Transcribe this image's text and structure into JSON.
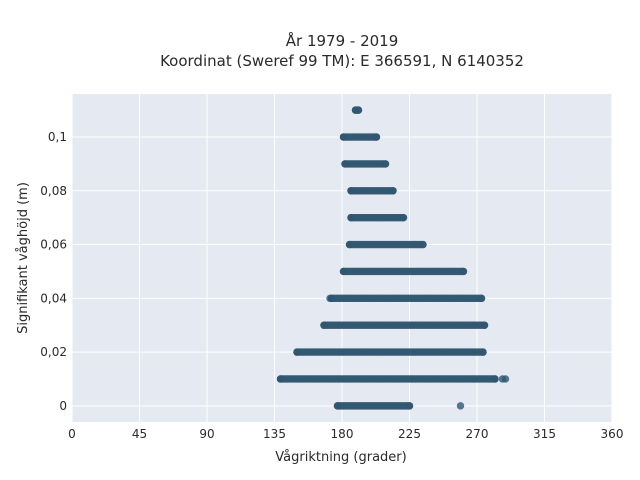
{
  "chart_data": {
    "type": "scatter",
    "title": "År 1979 - 2019",
    "subtitle": "Koordinat (Sweref 99 TM): E 366591, N 6140352",
    "xlabel": "Vågriktning (grader)",
    "ylabel": "Signifikant våghöjd (m)",
    "xlim": [
      0,
      360
    ],
    "ylim": [
      -0.006,
      0.116
    ],
    "x_ticks": [
      0,
      45,
      90,
      135,
      180,
      225,
      270,
      315,
      360
    ],
    "y_ticks": [
      0,
      0.02,
      0.04,
      0.06,
      0.08,
      0.1
    ],
    "y_tick_labels": [
      "0",
      "0,02",
      "0,04",
      "0,06",
      "0,08",
      "0,1"
    ],
    "grid": true,
    "marker_color": "#2f5670",
    "plot_background": "#e5e9f2",
    "bands": [
      {
        "y": 0.0,
        "x_min": 177,
        "x_max": 225,
        "outliers": [
          259
        ]
      },
      {
        "y": 0.01,
        "x_min": 139,
        "x_max": 282,
        "outliers": [
          287,
          289
        ]
      },
      {
        "y": 0.02,
        "x_min": 150,
        "x_max": 274
      },
      {
        "y": 0.03,
        "x_min": 168,
        "x_max": 275
      },
      {
        "y": 0.04,
        "x_min": 173,
        "x_max": 273,
        "outliers": [
          172
        ]
      },
      {
        "y": 0.05,
        "x_min": 181,
        "x_max": 261
      },
      {
        "y": 0.06,
        "x_min": 185,
        "x_max": 234
      },
      {
        "y": 0.07,
        "x_min": 186,
        "x_max": 221
      },
      {
        "y": 0.08,
        "x_min": 186,
        "x_max": 214
      },
      {
        "y": 0.09,
        "x_min": 182,
        "x_max": 209
      },
      {
        "y": 0.1,
        "x_min": 181,
        "x_max": 203
      },
      {
        "y": 0.11,
        "x_min": 189,
        "x_max": 191
      }
    ]
  }
}
